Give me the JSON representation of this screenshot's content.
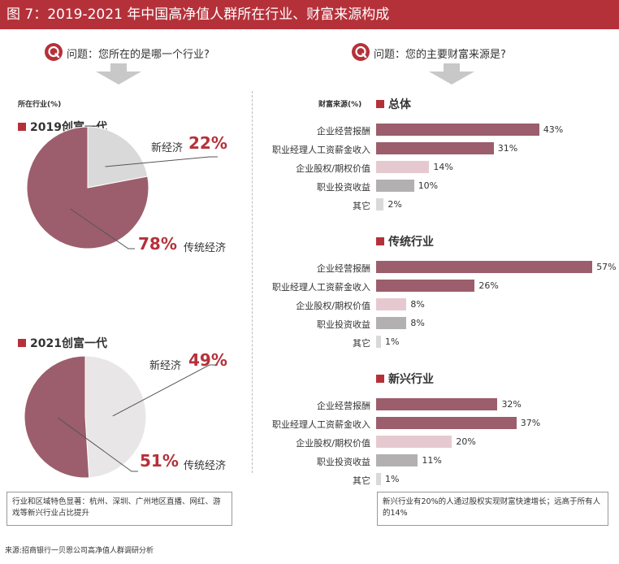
{
  "header": {
    "title": "图 7：2019-2021 年中国高净值人群所在行业、财富来源构成"
  },
  "left": {
    "question": "问题：您所在的是哪一个行业?",
    "axis_label": "所在行业(%)",
    "pies": [
      {
        "title": "2019创富一代",
        "slices": [
          {
            "name": "新经济",
            "value": 22,
            "pct_text": "22%",
            "color": "#d9d9d9"
          },
          {
            "name": "传统经济",
            "value": 78,
            "pct_text": "78%",
            "color": "#9c5e6c"
          }
        ]
      },
      {
        "title": "2021创富一代",
        "slices": [
          {
            "name": "新经济",
            "value": 49,
            "pct_text": "49%",
            "color": "#e8e6e6"
          },
          {
            "name": "传统经济",
            "value": 51,
            "pct_text": "51%",
            "color": "#9c5e6c"
          }
        ]
      }
    ],
    "note": "行业和区域特色显著：杭州、深圳、广州地区直播、网红、游戏等新兴行业占比提升"
  },
  "right": {
    "question": "问题：您的主要财富来源是?",
    "axis_label": "财富来源(%)",
    "note": "新兴行业有20%的人通过股权实现财富快速增长；远高于所有人的14%"
  },
  "chart_data": [
    {
      "type": "pie",
      "title": "2019创富一代",
      "categories": [
        "新经济",
        "传统经济"
      ],
      "values": [
        22,
        78
      ]
    },
    {
      "type": "pie",
      "title": "2021创富一代",
      "categories": [
        "新经济",
        "传统经济"
      ],
      "values": [
        49,
        51
      ]
    },
    {
      "type": "bar",
      "title": "总体",
      "ylabel": "财富来源(%)",
      "categories": [
        "企业经营报酬",
        "职业经理人工资薪金收入",
        "企业股权/期权价值",
        "职业投资收益",
        "其它"
      ],
      "values": [
        43,
        31,
        14,
        10,
        2
      ],
      "value_labels": [
        "43%",
        "31%",
        "14%",
        "10%",
        "2%"
      ],
      "colors": [
        "#9c5e6c",
        "#9c5e6c",
        "#e6c9d0",
        "#b3b0b1",
        "#d9d9d9"
      ]
    },
    {
      "type": "bar",
      "title": "传统行业",
      "ylabel": "财富来源(%)",
      "categories": [
        "企业经营报酬",
        "职业经理人工资薪金收入",
        "企业股权/期权价值",
        "职业投资收益",
        "其它"
      ],
      "values": [
        57,
        26,
        8,
        8,
        1
      ],
      "value_labels": [
        "57%",
        "26%",
        "8%",
        "8%",
        "1%"
      ],
      "colors": [
        "#9c5e6c",
        "#9c5e6c",
        "#e6c9d0",
        "#b3b0b1",
        "#d9d9d9"
      ]
    },
    {
      "type": "bar",
      "title": "新兴行业",
      "ylabel": "财富来源(%)",
      "categories": [
        "企业经营报酬",
        "职业经理人工资薪金收入",
        "企业股权/期权价值",
        "职业投资收益",
        "其它"
      ],
      "values": [
        32,
        37,
        20,
        11,
        1
      ],
      "value_labels": [
        "32%",
        "37%",
        "20%",
        "11%",
        "1%"
      ],
      "colors": [
        "#9c5e6c",
        "#9c5e6c",
        "#e6c9d0",
        "#b3b0b1",
        "#d9d9d9"
      ]
    }
  ],
  "source": "来源:招商银行一贝恩公司高净值人群调研分析"
}
